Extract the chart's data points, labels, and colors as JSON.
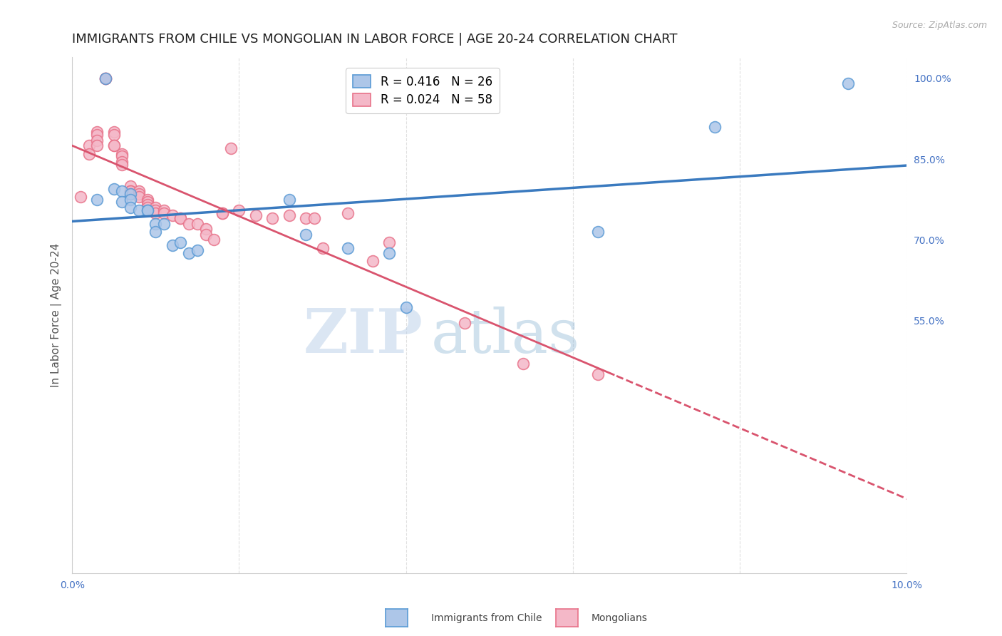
{
  "title": "IMMIGRANTS FROM CHILE VS MONGOLIAN IN LABOR FORCE | AGE 20-24 CORRELATION CHART",
  "source": "Source: ZipAtlas.com",
  "xlabel": "",
  "ylabel": "In Labor Force | Age 20-24",
  "xlim": [
    0.0,
    0.1
  ],
  "ylim": [
    0.08,
    1.04
  ],
  "xticks": [
    0.0,
    0.02,
    0.04,
    0.06,
    0.08,
    0.1
  ],
  "xticklabels": [
    "0.0%",
    "",
    "",
    "",
    "",
    "10.0%"
  ],
  "yticks_right": [
    1.0,
    0.85,
    0.7,
    0.55
  ],
  "yticklabels_right": [
    "100.0%",
    "85.0%",
    "70.0%",
    "55.0%"
  ],
  "legend_r1": "R = 0.416",
  "legend_n1": "N = 26",
  "legend_r2": "R = 0.024",
  "legend_n2": "N = 58",
  "chile_color": "#adc6e8",
  "chile_edge": "#5b9bd5",
  "mongolia_color": "#f4b8c8",
  "mongolia_edge": "#e8738a",
  "trend_chile_color": "#3a7abf",
  "trend_mongolia_color": "#d9546e",
  "background_color": "#ffffff",
  "grid_color": "#cccccc",
  "watermark_zip": "ZIP",
  "watermark_atlas": "atlas",
  "chile_x": [
    0.003,
    0.004,
    0.005,
    0.006,
    0.006,
    0.007,
    0.007,
    0.007,
    0.008,
    0.009,
    0.009,
    0.01,
    0.01,
    0.011,
    0.012,
    0.013,
    0.014,
    0.015,
    0.026,
    0.028,
    0.033,
    0.038,
    0.04,
    0.063,
    0.077,
    0.093
  ],
  "chile_y": [
    0.775,
    1.0,
    0.795,
    0.79,
    0.77,
    0.785,
    0.775,
    0.76,
    0.755,
    0.755,
    0.755,
    0.73,
    0.715,
    0.73,
    0.69,
    0.695,
    0.675,
    0.68,
    0.775,
    0.71,
    0.685,
    0.675,
    0.575,
    0.715,
    0.91,
    0.99
  ],
  "mongolia_x": [
    0.001,
    0.002,
    0.002,
    0.003,
    0.003,
    0.003,
    0.003,
    0.004,
    0.004,
    0.004,
    0.005,
    0.005,
    0.005,
    0.005,
    0.006,
    0.006,
    0.006,
    0.006,
    0.007,
    0.007,
    0.007,
    0.007,
    0.008,
    0.008,
    0.008,
    0.009,
    0.009,
    0.009,
    0.009,
    0.01,
    0.01,
    0.01,
    0.011,
    0.011,
    0.012,
    0.013,
    0.013,
    0.014,
    0.015,
    0.016,
    0.016,
    0.017,
    0.018,
    0.018,
    0.019,
    0.02,
    0.022,
    0.024,
    0.026,
    0.028,
    0.029,
    0.03,
    0.033,
    0.036,
    0.038,
    0.047,
    0.054,
    0.063
  ],
  "mongolia_y": [
    0.78,
    0.875,
    0.86,
    0.9,
    0.895,
    0.885,
    0.875,
    1.0,
    1.0,
    1.0,
    0.9,
    0.895,
    0.875,
    0.875,
    0.86,
    0.855,
    0.845,
    0.84,
    0.8,
    0.79,
    0.79,
    0.785,
    0.79,
    0.785,
    0.78,
    0.775,
    0.77,
    0.765,
    0.76,
    0.76,
    0.755,
    0.75,
    0.755,
    0.75,
    0.745,
    0.74,
    0.74,
    0.73,
    0.73,
    0.72,
    0.71,
    0.7,
    0.75,
    0.75,
    0.87,
    0.755,
    0.745,
    0.74,
    0.745,
    0.74,
    0.74,
    0.685,
    0.75,
    0.66,
    0.695,
    0.545,
    0.47,
    0.45
  ],
  "marker_size": 130,
  "title_fontsize": 13,
  "axis_fontsize": 11,
  "tick_fontsize": 10,
  "legend_fontsize": 12
}
